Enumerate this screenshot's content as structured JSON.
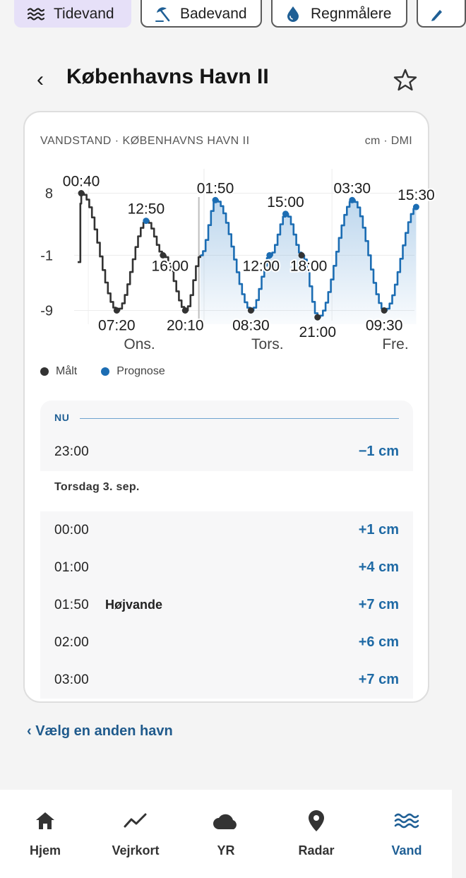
{
  "tabs": [
    {
      "label": "Tidevand",
      "icon": "waves-icon",
      "active": true
    },
    {
      "label": "Badevand",
      "icon": "beach-umbrella-icon",
      "active": false
    },
    {
      "label": "Regnmålere",
      "icon": "water-drop-icon",
      "active": false
    },
    {
      "label": "",
      "icon": "pen-icon",
      "active": false
    }
  ],
  "header": {
    "back": "‹",
    "title": "Københavns Havn II"
  },
  "card": {
    "heading": "VANDSTAND · KØBENHAVNS HAVN II",
    "unit_source": "cm · DMI"
  },
  "chart_data": {
    "type": "line",
    "ylim": [
      -11,
      10
    ],
    "yticks": [
      "8",
      "-1",
      "-9"
    ],
    "day_labels": [
      "Ons.",
      "Tors.",
      "Fre."
    ],
    "now_marker_hours": 23,
    "series": [
      {
        "name": "Målt",
        "color": "#333333",
        "x_hours": [
          0,
          0.67,
          7.33,
          12.83,
          16,
          20.17,
          23
        ],
        "values": [
          -2,
          8,
          -9,
          4,
          -1,
          -9,
          -1
        ]
      },
      {
        "name": "Prognose",
        "color": "#1c6db3",
        "x_hours": [
          23,
          25.83,
          32.5,
          36,
          39,
          42,
          45,
          51.5,
          57.5,
          63.5
        ],
        "values": [
          -1,
          7,
          -9,
          -1,
          5,
          -1,
          -10,
          7,
          -9,
          6
        ]
      }
    ],
    "annotations": [
      {
        "label": "00:40",
        "series": "Målt",
        "x_hours": 0.67,
        "value": 8
      },
      {
        "label": "07:20",
        "series": "Målt",
        "x_hours": 7.33,
        "value": -9
      },
      {
        "label": "12:50",
        "series": "Prognose",
        "x_hours": 12.83,
        "value": 4
      },
      {
        "label": "16:00",
        "series": "Målt",
        "x_hours": 16,
        "value": -1
      },
      {
        "label": "20:10",
        "series": "Målt",
        "x_hours": 20.17,
        "value": -9
      },
      {
        "label": "01:50",
        "series": "Prognose",
        "x_hours": 25.83,
        "value": 7
      },
      {
        "label": "08:30",
        "series": "Målt",
        "x_hours": 32.5,
        "value": -9
      },
      {
        "label": "12:00",
        "series": "Prognose",
        "x_hours": 36,
        "value": -1
      },
      {
        "label": "15:00",
        "series": "Prognose",
        "x_hours": 39,
        "value": 5
      },
      {
        "label": "18:00",
        "series": "Målt",
        "x_hours": 42,
        "value": -1
      },
      {
        "label": "21:00",
        "series": "Målt",
        "x_hours": 45,
        "value": -10
      },
      {
        "label": "03:30",
        "series": "Prognose",
        "x_hours": 51.5,
        "value": 7
      },
      {
        "label": "09:30",
        "series": "Målt",
        "x_hours": 57.5,
        "value": -9
      },
      {
        "label": "15:30",
        "series": "Prognose",
        "x_hours": 63.5,
        "value": 6
      }
    ]
  },
  "legend": [
    {
      "label": "Målt",
      "color": "#333333"
    },
    {
      "label": "Prognose",
      "color": "#1c6db3"
    }
  ],
  "now": {
    "label": "NU",
    "time": "23:00",
    "value": "−1 cm"
  },
  "day": {
    "heading": "Torsdag 3. sep.",
    "rows": [
      {
        "time": "00:00",
        "event": "",
        "value": "+1 cm"
      },
      {
        "time": "01:00",
        "event": "",
        "value": "+4 cm"
      },
      {
        "time": "01:50",
        "event": "Højvande",
        "value": "+7 cm"
      },
      {
        "time": "02:00",
        "event": "",
        "value": "+6 cm"
      },
      {
        "time": "03:00",
        "event": "",
        "value": "+7 cm"
      }
    ]
  },
  "other_link": "‹ Vælg en anden havn",
  "nav": [
    {
      "label": "Hjem",
      "icon": "home-icon",
      "active": false
    },
    {
      "label": "Vejrkort",
      "icon": "trend-line-icon",
      "active": false
    },
    {
      "label": "YR",
      "icon": "cloud-icon",
      "active": false
    },
    {
      "label": "Radar",
      "icon": "location-pin-icon",
      "active": false
    },
    {
      "label": "Vand",
      "icon": "waves-icon",
      "active": true
    }
  ]
}
